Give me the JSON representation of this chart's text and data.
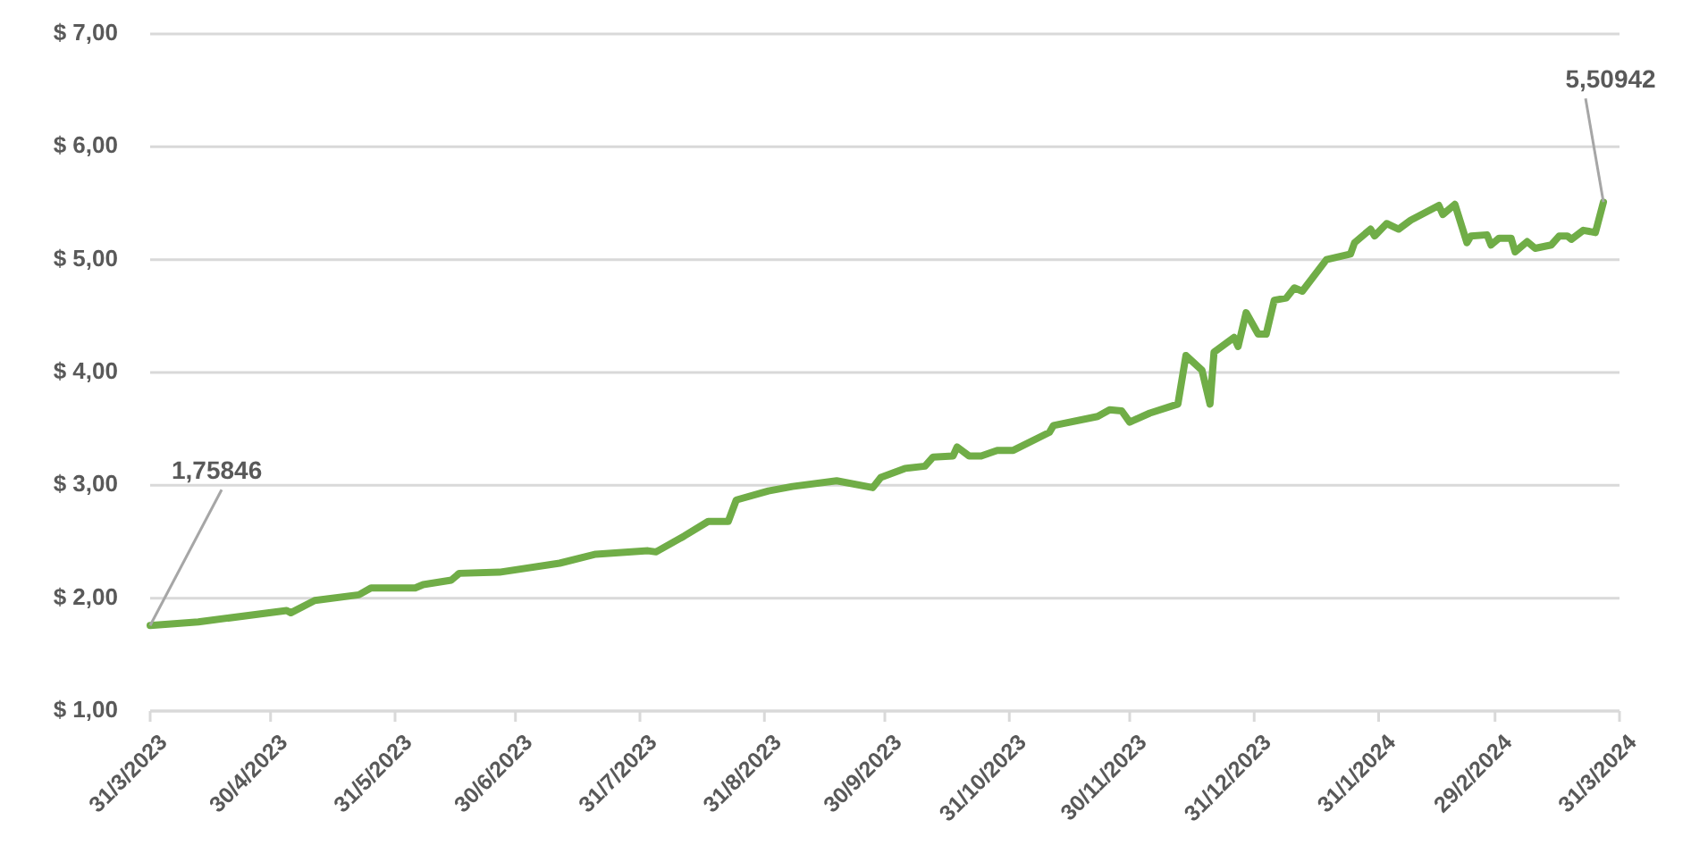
{
  "chart_data": {
    "type": "line",
    "x": [
      "2023-03-31",
      "2023-04-12",
      "2023-05-04",
      "2023-05-05",
      "2023-05-11",
      "2023-05-22",
      "2023-05-25",
      "2023-06-05",
      "2023-06-07",
      "2023-06-14",
      "2023-06-16",
      "2023-06-26",
      "2023-07-11",
      "2023-07-20",
      "2023-08-02",
      "2023-08-04",
      "2023-08-11",
      "2023-08-17",
      "2023-08-22",
      "2023-08-24",
      "2023-09-01",
      "2023-09-07",
      "2023-09-18",
      "2023-09-27",
      "2023-09-29",
      "2023-10-05",
      "2023-10-10",
      "2023-10-12",
      "2023-10-17",
      "2023-10-18",
      "2023-10-21",
      "2023-10-24",
      "2023-10-28",
      "2023-11-01",
      "2023-11-10",
      "2023-11-11",
      "2023-11-22",
      "2023-11-25",
      "2023-11-28",
      "2023-11-30",
      "2023-12-05",
      "2023-12-12",
      "2023-12-14",
      "2023-12-18",
      "2023-12-20",
      "2023-12-21",
      "2023-12-26",
      "2023-12-27",
      "2023-12-29",
      "2024-01-01",
      "2024-01-03",
      "2024-01-05",
      "2024-01-08",
      "2024-01-10",
      "2024-01-12",
      "2024-01-18",
      "2024-01-24",
      "2024-01-25",
      "2024-01-29",
      "2024-01-30",
      "2024-02-02",
      "2024-02-05",
      "2024-02-08",
      "2024-02-15",
      "2024-02-16",
      "2024-02-19",
      "2024-02-22",
      "2024-02-23",
      "2024-02-27",
      "2024-02-28",
      "2024-03-01",
      "2024-03-04",
      "2024-03-05",
      "2024-03-08",
      "2024-03-10",
      "2024-03-14",
      "2024-03-16",
      "2024-03-18",
      "2024-03-19",
      "2024-03-22",
      "2024-03-25",
      "2024-03-27"
    ],
    "series": [
      {
        "color": "#70ad47",
        "values": [
          1.75846,
          1.79,
          1.89,
          1.87,
          1.98,
          2.03,
          2.09,
          2.09,
          2.12,
          2.16,
          2.22,
          2.23,
          2.31,
          2.39,
          2.42,
          2.41,
          2.55,
          2.68,
          2.68,
          2.87,
          2.95,
          2.99,
          3.04,
          2.98,
          3.07,
          3.15,
          3.17,
          3.25,
          3.26,
          3.34,
          3.26,
          3.26,
          3.31,
          3.31,
          3.47,
          3.53,
          3.61,
          3.67,
          3.66,
          3.56,
          3.64,
          3.72,
          4.15,
          4.02,
          3.72,
          4.18,
          4.31,
          4.23,
          4.53,
          4.34,
          4.34,
          4.64,
          4.66,
          4.75,
          4.72,
          5.0,
          5.05,
          5.15,
          5.27,
          5.21,
          5.32,
          5.27,
          5.35,
          5.48,
          5.4,
          5.49,
          5.15,
          5.21,
          5.22,
          5.13,
          5.19,
          5.19,
          5.07,
          5.16,
          5.1,
          5.13,
          5.21,
          5.21,
          5.18,
          5.26,
          5.24,
          5.50942
        ]
      }
    ],
    "xlim": [
      "2023-03-31",
      "2024-03-31"
    ],
    "xticks": [
      {
        "value": "2023-03-31",
        "label": "31/3/2023"
      },
      {
        "value": "2023-04-30",
        "label": "30/4/2023"
      },
      {
        "value": "2023-05-31",
        "label": "31/5/2023"
      },
      {
        "value": "2023-06-30",
        "label": "30/6/2023"
      },
      {
        "value": "2023-07-31",
        "label": "31/7/2023"
      },
      {
        "value": "2023-08-31",
        "label": "31/8/2023"
      },
      {
        "value": "2023-09-30",
        "label": "30/9/2023"
      },
      {
        "value": "2023-10-31",
        "label": "31/10/2023"
      },
      {
        "value": "2023-11-30",
        "label": "30/11/2023"
      },
      {
        "value": "2023-12-31",
        "label": "31/12/2023"
      },
      {
        "value": "2024-01-31",
        "label": "31/1/2024"
      },
      {
        "value": "2024-02-29",
        "label": "29/2/2024"
      },
      {
        "value": "2024-03-31",
        "label": "31/3/2024"
      }
    ],
    "ylim": [
      1,
      7
    ],
    "yticks": [
      {
        "value": 1,
        "label": "$ 1,00"
      },
      {
        "value": 2,
        "label": "$ 2,00"
      },
      {
        "value": 3,
        "label": "$ 3,00"
      },
      {
        "value": 4,
        "label": "$ 4,00"
      },
      {
        "value": 5,
        "label": "$ 5,00"
      },
      {
        "value": 6,
        "label": "$ 6,00"
      },
      {
        "value": 7,
        "label": "$ 7,00"
      }
    ],
    "grid": "y",
    "marker": "none",
    "line_style": "solid",
    "annotations": [
      {
        "text": "1,75846",
        "x": "2023-03-31",
        "y": 1.75846
      },
      {
        "text": "5,50942",
        "x": "2024-03-27",
        "y": 5.50942
      }
    ]
  }
}
